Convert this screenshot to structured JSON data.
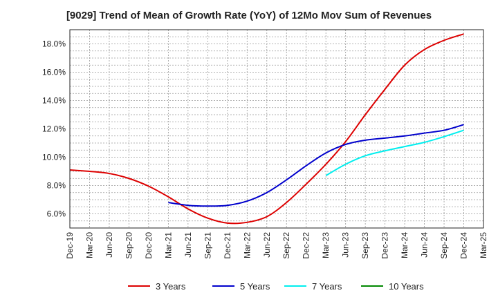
{
  "chart_data": {
    "type": "line",
    "title": "[9029]  Trend of Mean of Growth Rate (YoY) of 12Mo Mov Sum of Revenues",
    "xlabel": "",
    "ylabel": "",
    "categories": [
      "Dec-19",
      "Mar-20",
      "Jun-20",
      "Sep-20",
      "Dec-20",
      "Mar-21",
      "Jun-21",
      "Sep-21",
      "Dec-21",
      "Mar-22",
      "Jun-22",
      "Sep-22",
      "Dec-22",
      "Mar-23",
      "Jun-23",
      "Sep-23",
      "Dec-23",
      "Mar-24",
      "Jun-24",
      "Sep-24",
      "Dec-24",
      "Mar-25"
    ],
    "y_ticks": [
      "6.0%",
      "8.0%",
      "10.0%",
      "12.0%",
      "14.0%",
      "16.0%",
      "18.0%"
    ],
    "ylim": [
      5.0,
      19.0
    ],
    "grid": true,
    "legend_position": "bottom",
    "series": [
      {
        "name": "3 Years",
        "color": "#dd0000",
        "values": [
          9.1,
          9.0,
          8.85,
          8.5,
          7.95,
          7.2,
          6.35,
          5.7,
          5.35,
          5.4,
          5.8,
          6.8,
          8.1,
          9.5,
          11.1,
          13.0,
          14.8,
          16.5,
          17.6,
          18.25,
          18.7,
          null
        ]
      },
      {
        "name": "5 Years",
        "color": "#0000cc",
        "values": [
          null,
          null,
          null,
          null,
          null,
          6.8,
          6.6,
          6.55,
          6.6,
          6.9,
          7.5,
          8.4,
          9.4,
          10.3,
          10.9,
          11.2,
          11.35,
          11.5,
          11.7,
          11.9,
          12.3,
          null
        ]
      },
      {
        "name": "7 Years",
        "color": "#00eeee",
        "values": [
          null,
          null,
          null,
          null,
          null,
          null,
          null,
          null,
          null,
          null,
          null,
          null,
          null,
          8.7,
          9.5,
          10.1,
          10.45,
          10.75,
          11.05,
          11.45,
          11.9,
          null
        ]
      },
      {
        "name": "10 Years",
        "color": "#008800",
        "values": [
          null,
          null,
          null,
          null,
          null,
          null,
          null,
          null,
          null,
          null,
          null,
          null,
          null,
          null,
          null,
          null,
          null,
          null,
          null,
          null,
          null,
          null
        ]
      }
    ]
  }
}
